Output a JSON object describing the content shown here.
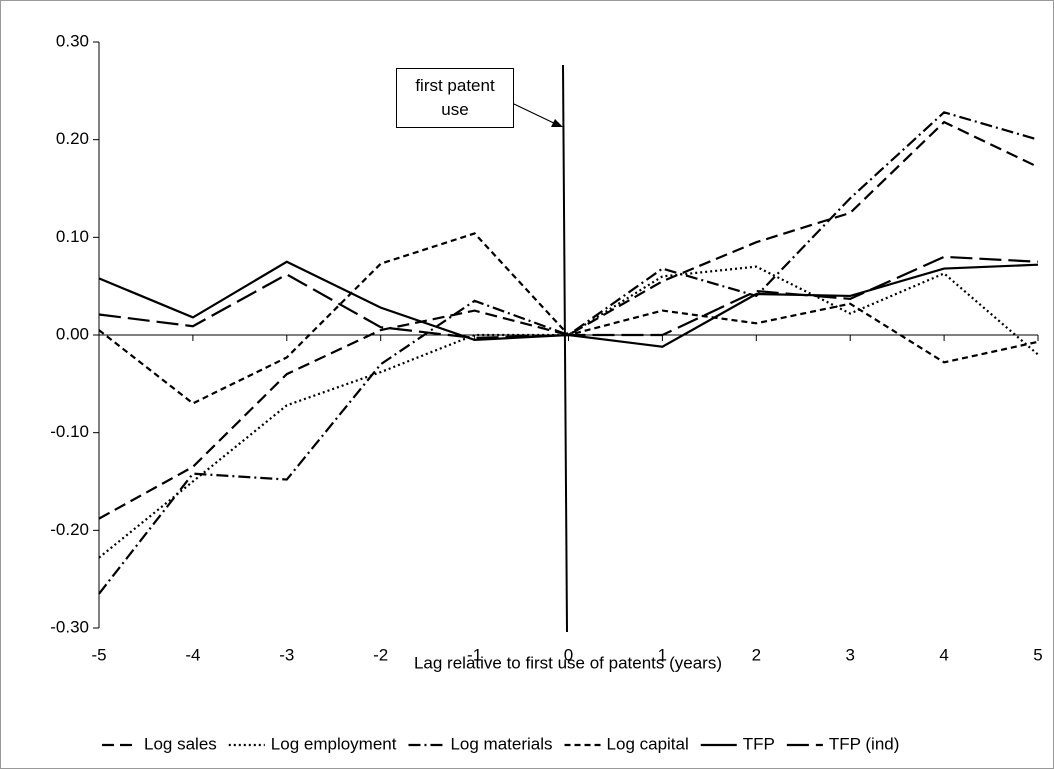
{
  "chart_data": {
    "type": "line",
    "x": [
      -5,
      -4,
      -3,
      -2,
      -1,
      0,
      1,
      2,
      3,
      4,
      5
    ],
    "xlim": [
      -5,
      5
    ],
    "xticks": [
      -5,
      -4,
      -3,
      -2,
      -1,
      0,
      1,
      2,
      3,
      4,
      5
    ],
    "ylim": [
      -0.3,
      0.3
    ],
    "yticks": [
      {
        "value": -0.3,
        "label": "-0.30"
      },
      {
        "value": -0.2,
        "label": "-0.20"
      },
      {
        "value": -0.1,
        "label": "-0.10"
      },
      {
        "value": 0,
        "label": "0.00"
      },
      {
        "value": 0.1,
        "label": "0.10"
      },
      {
        "value": 0.2,
        "label": "0.20"
      },
      {
        "value": 0.3,
        "label": "0.30"
      }
    ],
    "xlabel": "Lag relative to first use of patents (years)",
    "annotation": "first patent use",
    "series": [
      {
        "name": "Log sales",
        "color": "#000000",
        "dash": "12,6",
        "values": [
          -0.188,
          -0.135,
          -0.04,
          0.005,
          0.025,
          0,
          0.055,
          0.095,
          0.125,
          0.218,
          0.172
        ]
      },
      {
        "name": "Log employment",
        "color": "#000000",
        "dash": "2,3",
        "values": [
          -0.228,
          -0.15,
          -0.072,
          -0.038,
          0,
          0,
          0.06,
          0.07,
          0.022,
          0.063,
          -0.02
        ]
      },
      {
        "name": "Log materials",
        "color": "#000000",
        "dash": "12,4,2,4",
        "values": [
          -0.265,
          -0.142,
          -0.148,
          -0.03,
          0.035,
          0,
          0.068,
          0.04,
          0.14,
          0.228,
          0.2
        ]
      },
      {
        "name": "Log capital",
        "color": "#000000",
        "dash": "6,4",
        "values": [
          0.005,
          -0.07,
          -0.023,
          0.073,
          0.104,
          0,
          0.025,
          0.012,
          0.032,
          -0.028,
          -0.007
        ]
      },
      {
        "name": "TFP",
        "color": "#000000",
        "dash": "none",
        "values": [
          0.058,
          0.018,
          0.075,
          0.028,
          -0.005,
          0,
          -0.012,
          0.042,
          0.04,
          0.068,
          0.072
        ]
      },
      {
        "name": "TFP (ind)",
        "color": "#000000",
        "dash": "22,7",
        "values": [
          0.021,
          0.009,
          0.062,
          0.008,
          -0.003,
          0,
          0,
          0.045,
          0.037,
          0.08,
          0.075
        ]
      }
    ]
  }
}
